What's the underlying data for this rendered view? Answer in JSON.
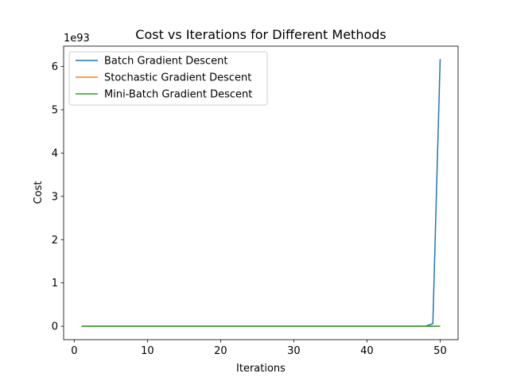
{
  "chart_data": {
    "type": "line",
    "title": "Cost vs Iterations for Different Methods",
    "xlabel": "Iterations",
    "ylabel": "Cost",
    "y_offset_label": "1e93",
    "xlim": [
      -1.45,
      52.45
    ],
    "ylim": [
      -0.31,
      6.47
    ],
    "xticks": [
      0,
      10,
      20,
      30,
      40,
      50
    ],
    "yticks": [
      0,
      1,
      2,
      3,
      4,
      5,
      6
    ],
    "grid": false,
    "legend": "upper-left",
    "series": [
      {
        "name": "Batch Gradient Descent",
        "color": "#1f77b4",
        "x": [
          1,
          10,
          20,
          30,
          40,
          47,
          48,
          49,
          50
        ],
        "y": [
          0,
          0,
          0,
          0,
          0,
          0,
          0.0,
          0.06,
          6.17
        ]
      },
      {
        "name": "Stochastic Gradient Descent",
        "color": "#ff7f0e",
        "x": [
          1,
          10,
          20,
          30,
          40,
          50
        ],
        "y": [
          0,
          0,
          0,
          0,
          0,
          0
        ]
      },
      {
        "name": "Mini-Batch Gradient Descent",
        "color": "#2ca02c",
        "x": [
          1,
          10,
          20,
          30,
          40,
          50
        ],
        "y": [
          0,
          0,
          0,
          0,
          0,
          0
        ]
      }
    ]
  }
}
